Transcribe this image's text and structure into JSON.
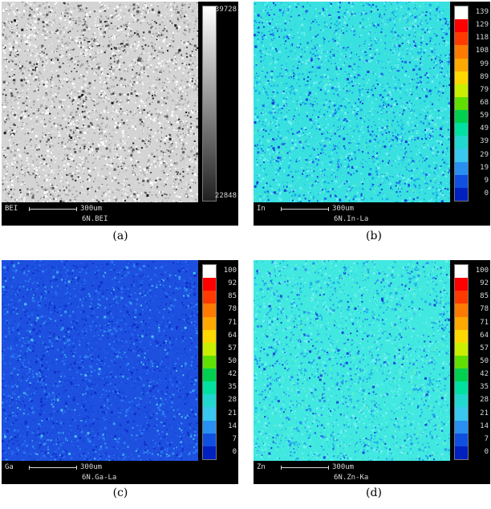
{
  "panels": [
    {
      "caption": "(a)",
      "element": "BEI",
      "scale_label": "300um",
      "sample_label": "6N.BEI",
      "colormap": "gray",
      "scale_max": "39728",
      "scale_min": "22848",
      "ticks": []
    },
    {
      "caption": "(b)",
      "element": "In",
      "scale_label": "300um",
      "sample_label": "6N.In-La",
      "colormap": "rainbow",
      "ticks": [
        "139",
        "129",
        "118",
        "108",
        "99",
        "89",
        "79",
        "68",
        "59",
        "49",
        "39",
        "29",
        "19",
        "9",
        "0"
      ]
    },
    {
      "caption": "(c)",
      "element": "Ga",
      "scale_label": "300um",
      "sample_label": "6N.Ga-La",
      "colormap": "rainbow",
      "ticks": [
        "100",
        "92",
        "85",
        "78",
        "71",
        "64",
        "57",
        "50",
        "42",
        "35",
        "28",
        "21",
        "14",
        "7",
        "0"
      ]
    },
    {
      "caption": "(d)",
      "element": "Zn",
      "scale_label": "300um",
      "sample_label": "6N.Zn-Ka",
      "colormap": "rainbow",
      "ticks": [
        "100",
        "92",
        "85",
        "78",
        "71",
        "64",
        "57",
        "50",
        "42",
        "35",
        "28",
        "21",
        "14",
        "7",
        "0"
      ]
    }
  ],
  "colors": {
    "rainbow": [
      "#ffffff",
      "#ff0000",
      "#ff3a00",
      "#ff7a00",
      "#ffa800",
      "#ffd800",
      "#c8f000",
      "#60e000",
      "#00d050",
      "#00e0a0",
      "#20d8d0",
      "#38c8f0",
      "#2890f0",
      "#1050e0",
      "#0020c0"
    ],
    "ga_base": "#1e50e0",
    "in_base": "#38e0e0",
    "zn_base": "#40e8e0"
  }
}
